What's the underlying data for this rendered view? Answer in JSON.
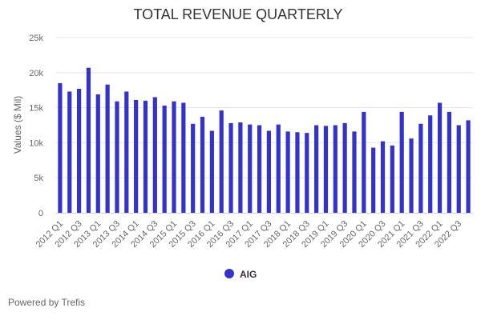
{
  "colors": {
    "series": "#3333cc",
    "grid": "#e6e6e6",
    "axis_line": "#ccd6eb",
    "tick_text": "#666666",
    "title_text": "#333333"
  },
  "credit": "Powered by Trefis",
  "chart_data": {
    "type": "bar",
    "title": "TOTAL REVENUE QUARTERLY",
    "ylabel": "Values ($ Mil)",
    "xlabel": "",
    "ylim": [
      0,
      25000
    ],
    "yticks": [
      0,
      5000,
      10000,
      15000,
      20000,
      25000
    ],
    "ytick_labels": [
      "0",
      "5k",
      "10k",
      "15k",
      "20k",
      "25k"
    ],
    "grid": true,
    "legend_position": "bottom-center",
    "xtick_labels": [
      "2012 Q1",
      "2012 Q3",
      "2013 Q1",
      "2013 Q3",
      "2014 Q1",
      "2014 Q3",
      "2015 Q1",
      "2015 Q3",
      "2016 Q1",
      "2016 Q3",
      "2017 Q1",
      "2017 Q3",
      "2018 Q1",
      "2018 Q3",
      "2019 Q1",
      "2019 Q3",
      "2020 Q1",
      "2020 Q3",
      "2021 Q1",
      "2021 Q3",
      "2022 Q1",
      "2022 Q3"
    ],
    "categories": [
      "2012 Q1",
      "2012 Q2",
      "2012 Q3",
      "2012 Q4",
      "2013 Q1",
      "2013 Q2",
      "2013 Q3",
      "2013 Q4",
      "2014 Q1",
      "2014 Q2",
      "2014 Q3",
      "2014 Q4",
      "2015 Q1",
      "2015 Q2",
      "2015 Q3",
      "2015 Q4",
      "2016 Q1",
      "2016 Q2",
      "2016 Q3",
      "2016 Q4",
      "2017 Q1",
      "2017 Q2",
      "2017 Q3",
      "2017 Q4",
      "2018 Q1",
      "2018 Q2",
      "2018 Q3",
      "2018 Q4",
      "2019 Q1",
      "2019 Q2",
      "2019 Q3",
      "2019 Q4",
      "2020 Q1",
      "2020 Q2",
      "2020 Q3",
      "2020 Q4",
      "2021 Q1",
      "2021 Q2",
      "2021 Q3",
      "2021 Q4",
      "2022 Q1",
      "2022 Q2",
      "2022 Q3",
      "2022 Q4"
    ],
    "series": [
      {
        "name": "AIG",
        "values": [
          18500,
          17300,
          17700,
          20700,
          16900,
          18300,
          15900,
          17300,
          16100,
          16000,
          16500,
          15300,
          15900,
          15700,
          12700,
          13700,
          11700,
          14600,
          12800,
          12900,
          12600,
          12500,
          11700,
          12600,
          11600,
          11500,
          11400,
          12500,
          12400,
          12500,
          12800,
          11600,
          14400,
          9300,
          10200,
          9600,
          14400,
          10600,
          12700,
          13900,
          15700,
          14400,
          12500,
          13200
        ]
      }
    ]
  }
}
